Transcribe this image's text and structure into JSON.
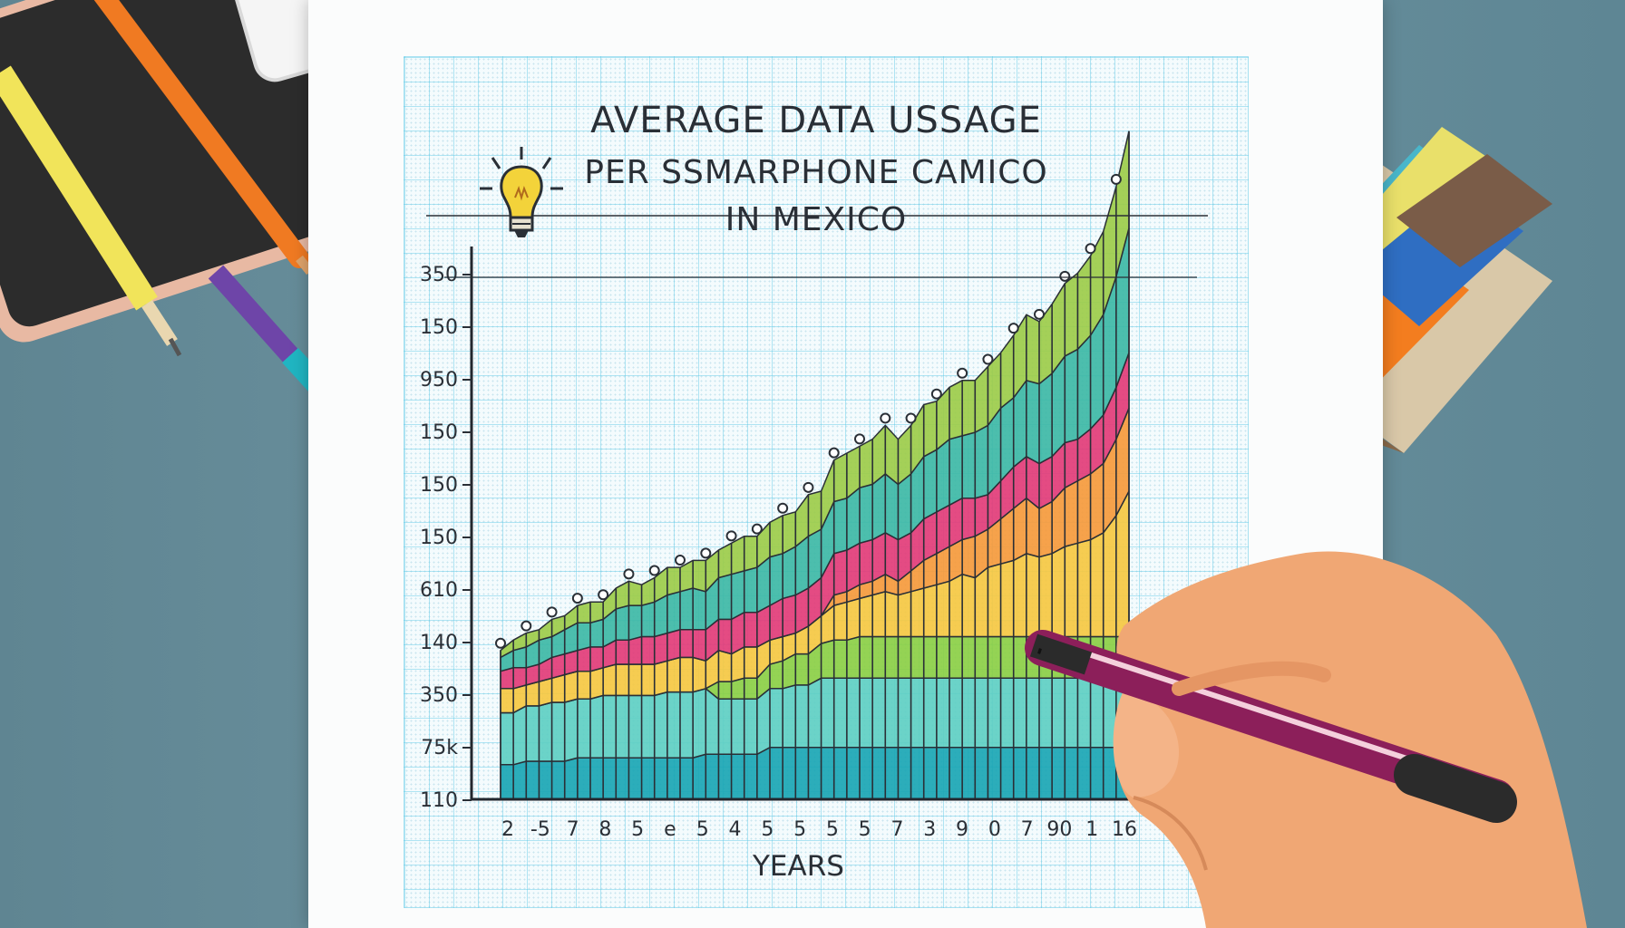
{
  "title": {
    "line1": "AVERAGE DATA USSAGE",
    "line2": "PER SSMARPHONE CAMICO",
    "line3": "IN MEXICO"
  },
  "chart_data": {
    "type": "area",
    "title": "AVERAGE DATA USSAGE PER SSMARPHONE CAMICO IN MEXICO",
    "xlabel": "YEARS",
    "ylabel": "",
    "y_tick_labels": [
      "350",
      "150",
      "950",
      "150",
      "150",
      "150",
      "610",
      "140",
      "350",
      "75k",
      "110"
    ],
    "x_tick_labels": [
      "2",
      "-5",
      "7",
      "8",
      "5",
      "e",
      "5",
      "4",
      "5",
      "5",
      "5",
      "5",
      "7",
      "3",
      "9",
      "0",
      "7",
      "90",
      "1",
      "16"
    ],
    "stacked": true,
    "x": [
      1,
      2,
      3,
      4,
      5,
      6,
      7,
      8,
      9,
      10,
      11,
      12,
      13,
      14,
      15,
      16,
      17,
      18,
      19,
      20,
      21,
      22,
      23,
      24,
      25,
      26,
      27,
      28,
      29,
      30,
      31,
      32,
      33,
      34,
      35,
      36,
      37,
      38,
      39,
      40,
      41,
      42,
      43,
      44,
      45,
      46,
      47,
      48,
      49,
      50
    ],
    "series": [
      {
        "color": "#1aa6b4",
        "values": [
          1.0,
          1.0,
          1.1,
          1.1,
          1.1,
          1.1,
          1.2,
          1.2,
          1.2,
          1.2,
          1.2,
          1.2,
          1.2,
          1.2,
          1.2,
          1.2,
          1.3,
          1.3,
          1.3,
          1.3,
          1.3,
          1.5,
          1.5,
          1.5,
          1.5,
          1.5,
          1.5,
          1.5,
          1.5,
          1.5,
          1.5,
          1.5,
          1.5,
          1.5,
          1.5,
          1.5,
          1.5,
          1.5,
          1.5,
          1.5,
          1.5,
          1.5,
          1.5,
          1.5,
          1.5,
          1.5,
          1.5,
          1.5,
          1.5,
          1.5
        ]
      },
      {
        "color": "#5ecfc3",
        "values": [
          1.5,
          1.5,
          1.6,
          1.6,
          1.7,
          1.7,
          1.7,
          1.7,
          1.8,
          1.8,
          1.8,
          1.8,
          1.8,
          1.9,
          1.9,
          1.9,
          1.9,
          1.6,
          1.6,
          1.6,
          1.6,
          1.7,
          1.7,
          1.8,
          1.8,
          2.0,
          2.0,
          2.0,
          2.0,
          2.0,
          2.0,
          2.0,
          2.0,
          2.0,
          2.0,
          2.0,
          2.0,
          2.0,
          2.0,
          2.0,
          2.0,
          2.0,
          2.0,
          2.0,
          2.0,
          2.0,
          2.0,
          2.0,
          2.0,
          2.0
        ]
      },
      {
        "color": "#8bcf45",
        "values": [
          0.0,
          0.0,
          0.0,
          0.0,
          0.0,
          0.0,
          0.0,
          0.0,
          0.0,
          0.0,
          0.0,
          0.0,
          0.0,
          0.0,
          0.0,
          0.0,
          0.0,
          0.5,
          0.5,
          0.6,
          0.6,
          0.7,
          0.8,
          0.9,
          0.9,
          1.0,
          1.1,
          1.1,
          1.2,
          1.2,
          1.2,
          1.2,
          1.2,
          1.2,
          1.2,
          1.2,
          1.2,
          1.2,
          1.2,
          1.2,
          1.2,
          1.2,
          1.2,
          1.2,
          1.2,
          1.2,
          1.2,
          1.2,
          1.2,
          1.2
        ]
      },
      {
        "color": "#f5c842",
        "values": [
          0.7,
          0.7,
          0.6,
          0.7,
          0.7,
          0.8,
          0.8,
          0.8,
          0.8,
          0.9,
          0.9,
          0.9,
          0.9,
          0.9,
          1.0,
          1.0,
          0.8,
          0.9,
          0.8,
          0.9,
          0.9,
          0.7,
          0.7,
          0.6,
          0.8,
          0.8,
          1.0,
          1.1,
          1.1,
          1.2,
          1.3,
          1.2,
          1.3,
          1.4,
          1.5,
          1.6,
          1.8,
          1.7,
          2.0,
          2.1,
          2.2,
          2.4,
          2.3,
          2.4,
          2.6,
          2.7,
          2.8,
          3.0,
          3.5,
          4.2
        ]
      },
      {
        "color": "#f59a3c",
        "values": [
          0.0,
          0.0,
          0.0,
          0.0,
          0.0,
          0.0,
          0.0,
          0.0,
          0.0,
          0.0,
          0.0,
          0.0,
          0.0,
          0.0,
          0.0,
          0.0,
          0.0,
          0.0,
          0.0,
          0.0,
          0.0,
          0.0,
          0.0,
          0.0,
          0.0,
          0.0,
          0.3,
          0.3,
          0.4,
          0.4,
          0.5,
          0.4,
          0.6,
          0.8,
          0.9,
          1.0,
          1.0,
          1.2,
          1.1,
          1.3,
          1.5,
          1.6,
          1.4,
          1.5,
          1.7,
          1.8,
          1.9,
          2.0,
          2.2,
          2.4
        ]
      },
      {
        "color": "#e23c78",
        "values": [
          0.5,
          0.6,
          0.5,
          0.5,
          0.6,
          0.6,
          0.6,
          0.7,
          0.6,
          0.7,
          0.7,
          0.8,
          0.8,
          0.8,
          0.8,
          0.8,
          0.9,
          0.9,
          1.0,
          1.0,
          1.0,
          1.0,
          1.1,
          1.1,
          1.1,
          1.1,
          1.2,
          1.2,
          1.2,
          1.2,
          1.2,
          1.2,
          1.1,
          1.2,
          1.2,
          1.2,
          1.2,
          1.1,
          1.0,
          1.1,
          1.2,
          1.2,
          1.3,
          1.3,
          1.3,
          1.2,
          1.3,
          1.4,
          1.5,
          1.6
        ]
      },
      {
        "color": "#3db8a6",
        "values": [
          0.4,
          0.5,
          0.6,
          0.7,
          0.6,
          0.7,
          0.8,
          0.7,
          0.8,
          0.9,
          1.0,
          0.9,
          1.0,
          1.1,
          1.1,
          1.2,
          1.1,
          1.2,
          1.3,
          1.2,
          1.3,
          1.4,
          1.3,
          1.4,
          1.5,
          1.4,
          1.5,
          1.5,
          1.6,
          1.6,
          1.7,
          1.6,
          1.7,
          1.8,
          1.8,
          1.9,
          1.8,
          1.9,
          2.0,
          2.1,
          2.0,
          2.2,
          2.3,
          2.4,
          2.5,
          2.6,
          2.7,
          2.9,
          3.2,
          3.6
        ]
      },
      {
        "color": "#9ccc4a",
        "values": [
          0.2,
          0.3,
          0.4,
          0.3,
          0.5,
          0.4,
          0.5,
          0.6,
          0.5,
          0.6,
          0.7,
          0.6,
          0.7,
          0.8,
          0.7,
          0.8,
          0.9,
          0.8,
          0.9,
          1.0,
          0.9,
          1.0,
          1.1,
          1.0,
          1.2,
          1.1,
          1.2,
          1.3,
          1.2,
          1.3,
          1.4,
          1.3,
          1.4,
          1.5,
          1.4,
          1.5,
          1.6,
          1.5,
          1.7,
          1.6,
          1.8,
          1.9,
          1.8,
          2.0,
          2.1,
          2.2,
          2.3,
          2.4,
          2.6,
          2.8
        ]
      }
    ]
  },
  "colors": {
    "axis": "#23272e",
    "grid": "#5ac8e6",
    "paper": "#fbfcfc",
    "background": "#6a909d"
  },
  "icons": [
    "lightbulb-icon"
  ]
}
